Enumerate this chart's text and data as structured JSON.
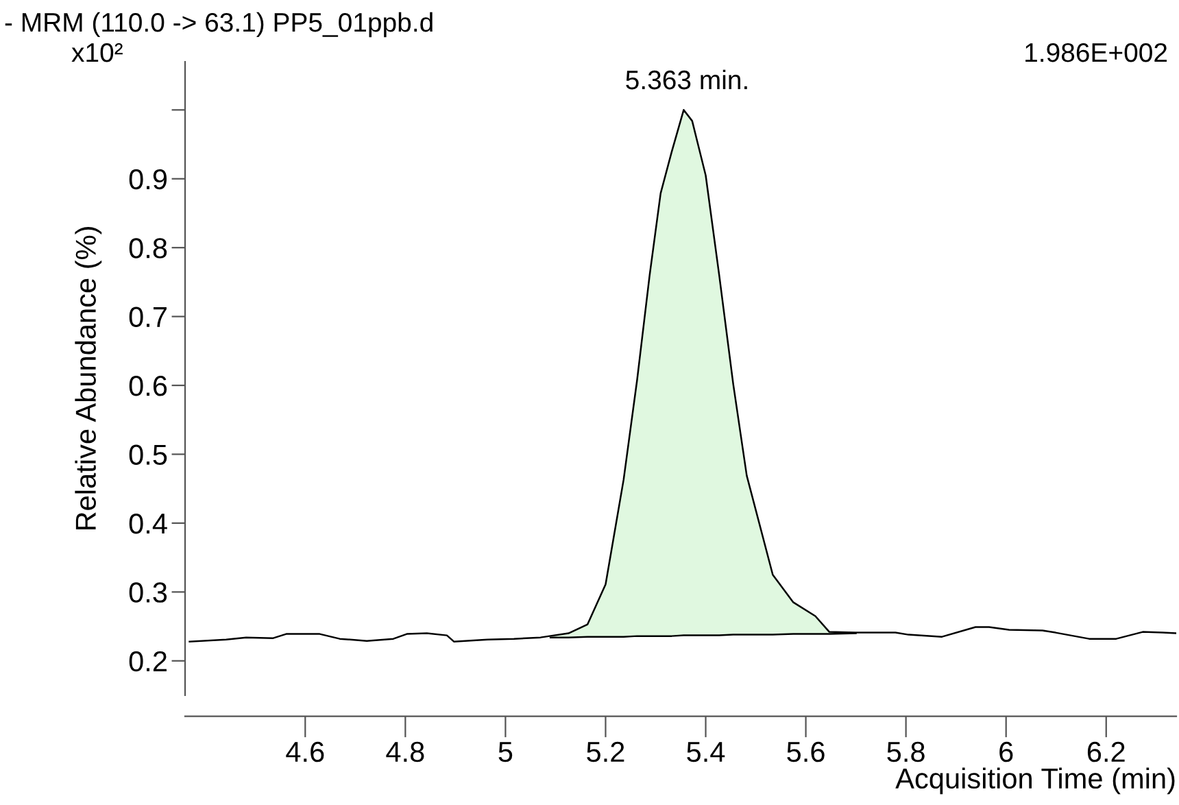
{
  "chart_data": {
    "type": "line",
    "title": "- MRM (110.0 -> 63.1) PP5_01ppb.d",
    "xlabel": "Acquisition Time (min)",
    "ylabel": "Relative Abundance (%)",
    "annotations": [
      {
        "text": "5.363 min.",
        "x": 5.363,
        "y": 1.0
      },
      "1.986E+002",
      "x10²"
    ],
    "series": [
      {
        "type": "line",
        "color": "#000000",
        "x": [
          4.369,
          4.442,
          4.482,
          4.536,
          4.562,
          4.629,
          4.669,
          4.723,
          4.776,
          4.803,
          4.843,
          4.883,
          4.897,
          4.964,
          5.017,
          5.07,
          5.126,
          5.164,
          5.2,
          5.236,
          5.263,
          5.288,
          5.31,
          5.332,
          5.356,
          5.373,
          5.4,
          5.427,
          5.455,
          5.482,
          5.534,
          5.575,
          5.619,
          5.647,
          5.699,
          5.779,
          5.805,
          5.872,
          5.939,
          5.966,
          6.006,
          6.073,
          6.099,
          6.166,
          6.22,
          6.273,
          6.313,
          6.34
        ],
        "values": [
          0.228,
          0.231,
          0.234,
          0.233,
          0.239,
          0.239,
          0.232,
          0.229,
          0.232,
          0.239,
          0.24,
          0.237,
          0.228,
          0.231,
          0.232,
          0.234,
          0.24,
          0.253,
          0.311,
          0.463,
          0.608,
          0.76,
          0.879,
          0.939,
          1.0,
          0.984,
          0.905,
          0.76,
          0.602,
          0.469,
          0.325,
          0.285,
          0.265,
          0.242,
          0.241,
          0.241,
          0.238,
          0.235,
          0.249,
          0.249,
          0.245,
          0.244,
          0.241,
          0.232,
          0.232,
          0.242,
          0.241,
          0.24
        ]
      },
      {
        "type": "line",
        "color": "#000000",
        "x": [
          5.09,
          5.126,
          5.164,
          5.2,
          5.236,
          5.263,
          5.288,
          5.31,
          5.332,
          5.356,
          5.373,
          5.4,
          5.427,
          5.455,
          5.482,
          5.534,
          5.575,
          5.619,
          5.647,
          5.7
        ],
        "values": [
          0.234,
          0.234,
          0.235,
          0.235,
          0.235,
          0.236,
          0.236,
          0.236,
          0.236,
          0.237,
          0.237,
          0.237,
          0.237,
          0.238,
          0.238,
          0.238,
          0.239,
          0.239,
          0.239,
          0.24
        ]
      },
      {
        "type": "area",
        "color": "#e0f8e0",
        "x": [
          5.09,
          5.126,
          5.164,
          5.2,
          5.236,
          5.263,
          5.288,
          5.31,
          5.332,
          5.356,
          5.373,
          5.4,
          5.427,
          5.455,
          5.482,
          5.534,
          5.575,
          5.619,
          5.647,
          5.7
        ],
        "values": [
          0.235,
          0.24,
          0.253,
          0.311,
          0.463,
          0.608,
          0.76,
          0.879,
          0.939,
          1.0,
          0.984,
          0.905,
          0.76,
          0.602,
          0.469,
          0.325,
          0.285,
          0.265,
          0.242,
          0.24
        ]
      }
    ],
    "xlim": [
      4.36,
      6.34
    ],
    "ylim": [
      0.15,
      1.07
    ],
    "xticks": [
      4.6,
      4.8,
      5,
      5.2,
      5.4,
      5.6,
      5.8,
      6,
      6.2
    ],
    "yticks": [
      0.2,
      0.3,
      0.4,
      0.5,
      0.6,
      0.7,
      0.8,
      0.9,
      {
        "value": 1.0,
        "label": null
      }
    ]
  }
}
